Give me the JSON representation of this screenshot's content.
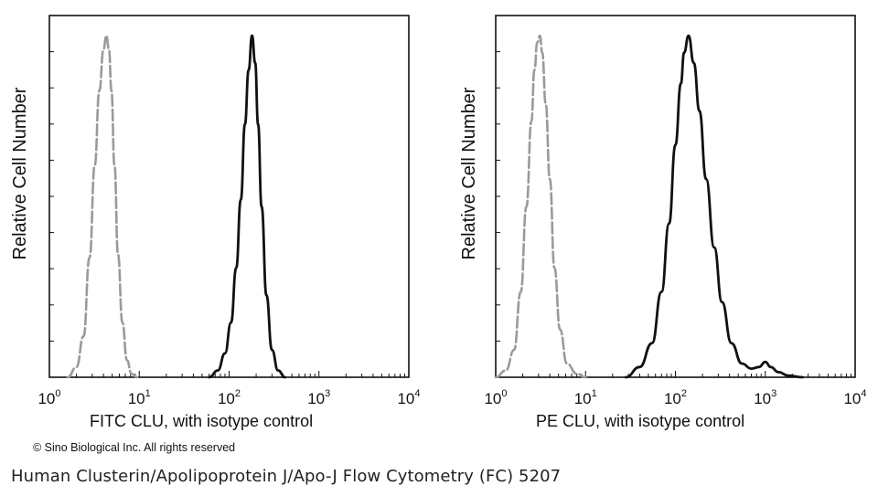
{
  "chart_data": [
    {
      "type": "line",
      "x_scale": "log",
      "xlim": [
        1,
        10000
      ],
      "ylim": [
        0,
        100
      ],
      "xlabel": "FITC  CLU,  with isotype control",
      "ylabel": "Relative Cell Number",
      "tick_labels": [
        "10",
        "10",
        "10",
        "10",
        "10"
      ],
      "tick_exponents": [
        "0",
        "1",
        "2",
        "3",
        "4"
      ],
      "tick_values": [
        1,
        10,
        100,
        1000,
        10000
      ],
      "y_grid": false,
      "series": [
        {
          "style": "dashed",
          "color": "#9a9a9a",
          "x": [
            1.6,
            2.0,
            2.4,
            2.8,
            3.2,
            3.6,
            4.0,
            4.3,
            4.6,
            4.9,
            5.3,
            5.8,
            6.5,
            7.3,
            8.2,
            9.5
          ],
          "y": [
            0,
            3,
            12,
            35,
            62,
            84,
            96,
            100,
            96,
            84,
            62,
            36,
            16,
            5,
            1,
            0
          ]
        },
        {
          "style": "solid",
          "color": "#111111",
          "x": [
            60,
            75,
            90,
            105,
            120,
            135,
            150,
            165,
            180,
            195,
            210,
            230,
            260,
            300,
            350,
            420
          ],
          "y": [
            0,
            2,
            7,
            16,
            32,
            52,
            74,
            90,
            100,
            92,
            74,
            50,
            24,
            8,
            2,
            0
          ]
        }
      ]
    },
    {
      "type": "line",
      "x_scale": "log",
      "xlim": [
        1,
        10000
      ],
      "ylim": [
        0,
        100
      ],
      "xlabel": "PE  CLU,  with isotype control",
      "ylabel": "Relative Cell Number",
      "tick_labels": [
        "10",
        "10",
        "10",
        "10",
        "10"
      ],
      "tick_exponents": [
        "0",
        "1",
        "2",
        "3",
        "4"
      ],
      "tick_values": [
        1,
        10,
        100,
        1000,
        10000
      ],
      "y_grid": false,
      "series": [
        {
          "style": "dashed",
          "color": "#9a9a9a",
          "x": [
            1.0,
            1.3,
            1.6,
            1.9,
            2.2,
            2.5,
            2.7,
            2.9,
            3.1,
            3.3,
            3.6,
            4.0,
            4.5,
            5.2,
            6.2,
            8.0,
            10
          ],
          "y": [
            0,
            2,
            8,
            25,
            50,
            75,
            90,
            98,
            100,
            95,
            80,
            58,
            32,
            14,
            4,
            1,
            0
          ]
        },
        {
          "style": "solid",
          "color": "#111111",
          "x": [
            28,
            40,
            55,
            70,
            85,
            100,
            115,
            125,
            140,
            160,
            185,
            220,
            270,
            330,
            420,
            550,
            700,
            850,
            1000,
            1150,
            1400,
            1800,
            2600
          ],
          "y": [
            0,
            3,
            10,
            25,
            45,
            68,
            86,
            95,
            100,
            92,
            78,
            58,
            38,
            22,
            10,
            4,
            2.5,
            3,
            4.5,
            3,
            1.5,
            0.5,
            0
          ]
        }
      ]
    }
  ],
  "copyright": "© Sino Biological Inc. All rights reserved",
  "caption": "Human Clusterin/Apolipoprotein J/Apo-J Flow Cytometry (FC) 5207"
}
